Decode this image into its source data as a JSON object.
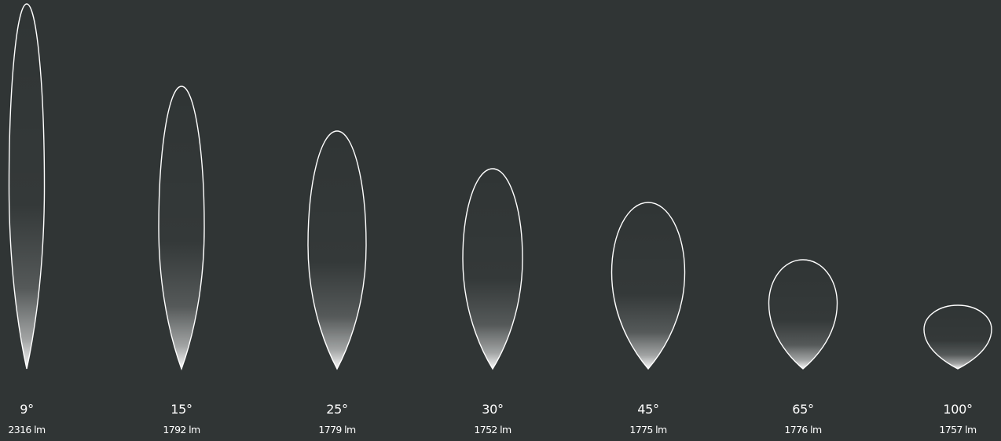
{
  "beams": [
    {
      "angle": "9°",
      "lumens": "2316 lm"
    },
    {
      "angle": "15°",
      "lumens": "1792 lm"
    },
    {
      "angle": "25°",
      "lumens": "1779 lm"
    },
    {
      "angle": "30°",
      "lumens": "1752 lm"
    },
    {
      "angle": "45°",
      "lumens": "1775 lm"
    },
    {
      "angle": "65°",
      "lumens": "1776 lm"
    },
    {
      "angle": "100°",
      "lumens": "1757 lm"
    }
  ],
  "colors": {
    "background": "#303535",
    "outline": "#ffffff",
    "glow": "#ffffff"
  }
}
